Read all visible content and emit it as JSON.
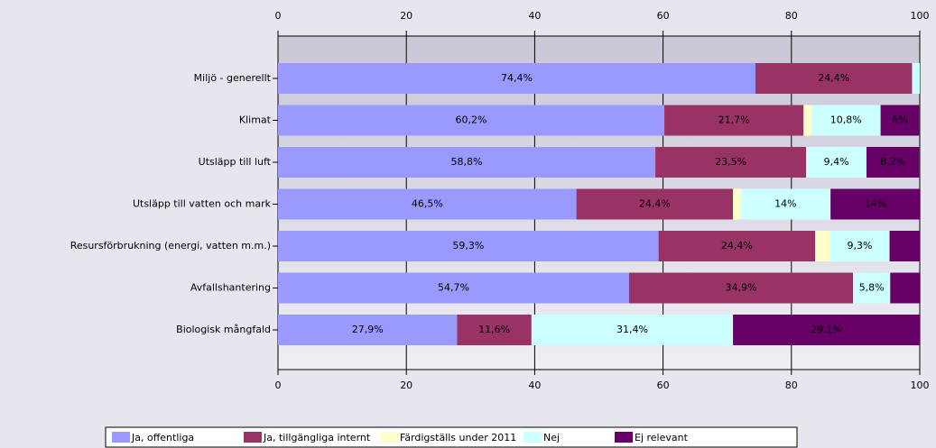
{
  "chart_data": {
    "type": "stacked_bar_horizontal",
    "categories": [
      "Miljö - generellt",
      "Klimat",
      "Utsläpp till luft",
      "Utsläpp till vatten och mark",
      "Resursförbrukning (energi, vatten m.m.)",
      "Avfallshantering",
      "Biologisk mångfald"
    ],
    "series": [
      {
        "name": "Ja, offentliga",
        "color": "#9999ff",
        "values": [
          74.4,
          60.2,
          58.8,
          46.5,
          59.3,
          54.7,
          27.9
        ],
        "value_labels": [
          "74,4%",
          "60,2%",
          "58,8%",
          "46,5%",
          "59,3%",
          "54,7%",
          "27,9%"
        ]
      },
      {
        "name": "Ja, tillgängliga internt",
        "color": "#993366",
        "values": [
          24.4,
          21.7,
          23.5,
          24.4,
          24.4,
          34.9,
          11.6
        ],
        "value_labels": [
          "24,4%",
          "21,7%",
          "23,5%",
          "24,4%",
          "24,4%",
          "34,9%",
          "11,6%"
        ]
      },
      {
        "name": "Färdigställs under 2011",
        "color": "#ffffcc",
        "values": [
          0,
          1.2,
          0,
          1.2,
          2.3,
          0,
          0
        ],
        "value_labels": [
          null,
          null,
          null,
          null,
          null,
          null,
          null
        ]
      },
      {
        "name": "Nej",
        "color": "#ccffff",
        "values": [
          1.2,
          10.8,
          9.4,
          14,
          9.3,
          5.8,
          31.4
        ],
        "value_labels": [
          null,
          "10,8%",
          "9,4%",
          "14%",
          "9,3%",
          "5,8%",
          "31,4%"
        ]
      },
      {
        "name": "Ej relevant",
        "color": "#660066",
        "values": [
          0,
          6,
          8.2,
          14,
          4.7,
          4.7,
          29.1
        ],
        "value_labels": [
          null,
          "6%",
          "8,2%",
          "14%",
          null,
          null,
          "29,1%"
        ]
      }
    ],
    "xlim": [
      0,
      100
    ],
    "xticks": [
      0,
      20,
      40,
      60,
      80,
      100
    ],
    "grid": true,
    "legend": "bottom"
  }
}
